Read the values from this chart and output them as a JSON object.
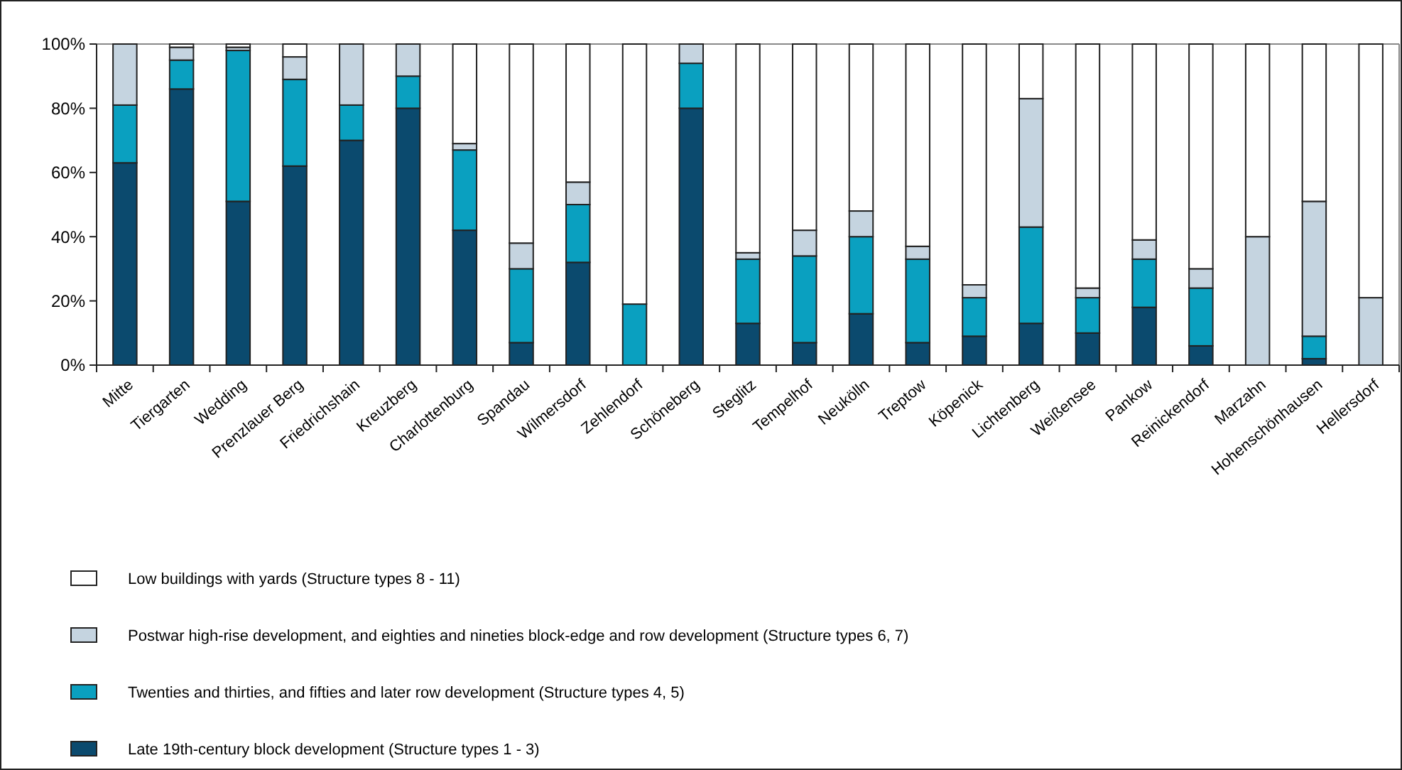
{
  "chart_data": {
    "type": "bar",
    "stacked": true,
    "categories": [
      "Mitte",
      "Tiergarten",
      "Wedding",
      "Prenzlauer Berg",
      "Friedrichshain",
      "Kreuzberg",
      "Charlottenburg",
      "Spandau",
      "Wilmersdorf",
      "Zehlendorf",
      "Schöneberg",
      "Steglitz",
      "Tempelhof",
      "Neukölln",
      "Treptow",
      "Köpenick",
      "Lichtenberg",
      "Weißensee",
      "Pankow",
      "Reinickendorf",
      "Marzahn",
      "Hohenschönhausen",
      "Hellersdorf"
    ],
    "series": [
      {
        "name": "Late 19th-century block development (Structure types 1 - 3)",
        "color": "#0b4a6e",
        "values": [
          63,
          86,
          51,
          62,
          70,
          80,
          42,
          7,
          32,
          0,
          80,
          13,
          7,
          16,
          7,
          9,
          13,
          10,
          18,
          6,
          0,
          2,
          0
        ]
      },
      {
        "name": "Twenties and thirties, and fifties and later row development (Structure types 4, 5)",
        "color": "#0aa0c0",
        "values": [
          18,
          9,
          47,
          27,
          11,
          10,
          25,
          23,
          18,
          19,
          14,
          20,
          27,
          24,
          26,
          12,
          30,
          11,
          15,
          18,
          0,
          7,
          0
        ]
      },
      {
        "name": "Postwar high-rise development, and eighties and nineties block-edge and row development (Structure types 6, 7)",
        "color": "#c5d4e0",
        "values": [
          19,
          4,
          1,
          7,
          19,
          10,
          2,
          8,
          7,
          0,
          6,
          2,
          8,
          8,
          4,
          4,
          40,
          3,
          6,
          6,
          40,
          42,
          21
        ]
      },
      {
        "name": "Low buildings with yards (Structure types 8 - 11)",
        "color": "#ffffff",
        "values": [
          0,
          1,
          1,
          4,
          0,
          0,
          31,
          62,
          43,
          81,
          0,
          65,
          58,
          52,
          63,
          75,
          17,
          76,
          61,
          70,
          60,
          49,
          79
        ]
      }
    ],
    "ylim": [
      0,
      100
    ],
    "yticks": [
      {
        "value": 0,
        "label": "0%"
      },
      {
        "value": 20,
        "label": "20%"
      },
      {
        "value": 40,
        "label": "40%"
      },
      {
        "value": 60,
        "label": "60%"
      },
      {
        "value": 80,
        "label": "80%"
      },
      {
        "value": 100,
        "label": "100%"
      }
    ],
    "grid": false,
    "legend": "bottom"
  }
}
